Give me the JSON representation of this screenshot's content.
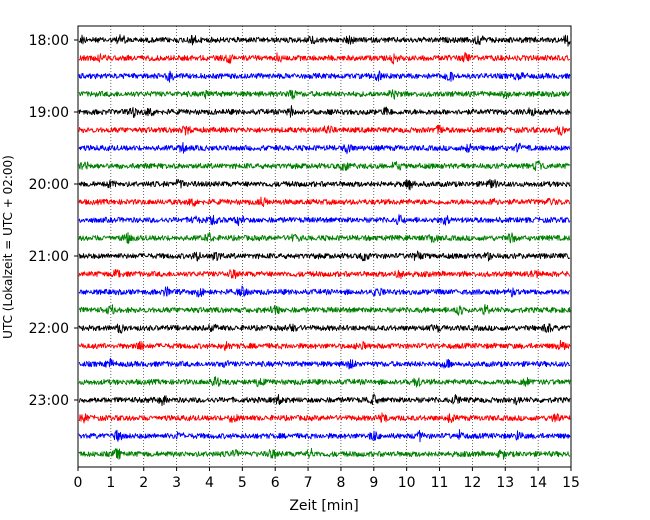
{
  "chart_data": {
    "type": "line",
    "title": "",
    "xlabel": "Zeit  [min]",
    "ylabel": "UTC (Lokalzeit = UTC + 02:00)",
    "xlim": [
      0,
      15
    ],
    "x_ticks": [
      0,
      1,
      2,
      3,
      4,
      5,
      6,
      7,
      8,
      9,
      10,
      11,
      12,
      13,
      14,
      15
    ],
    "x_tick_labels": [
      "0",
      "1",
      "2",
      "3",
      "4",
      "5",
      "6",
      "7",
      "8",
      "9",
      "10",
      "11",
      "12",
      "13",
      "14",
      "15"
    ],
    "y_tick_labels": [
      "18:00",
      "19:00",
      "20:00",
      "21:00",
      "22:00",
      "23:00"
    ],
    "grid": "vertical dotted",
    "trace_colors": [
      "#000000",
      "#ff0000",
      "#0000ff",
      "#008000"
    ],
    "traces": [
      {
        "start": "18:00",
        "color": "#000000",
        "events": [
          0.1,
          1.3,
          3.5,
          7.1,
          8.3,
          12.2,
          14.9
        ]
      },
      {
        "start": "18:15",
        "color": "#ff0000",
        "events": [
          0.7,
          4.6,
          6.1,
          9.6,
          11.8
        ]
      },
      {
        "start": "18:30",
        "color": "#0000ff",
        "events": [
          2.8,
          9.1,
          11.3,
          13.4
        ]
      },
      {
        "start": "18:45",
        "color": "#008000",
        "events": [
          3.9,
          6.5,
          9.6,
          13.0
        ]
      },
      {
        "start": "19:00",
        "color": "#000000",
        "events": [
          1.7,
          2.2,
          6.5,
          9.4,
          13.8
        ]
      },
      {
        "start": "19:15",
        "color": "#ff0000",
        "events": [
          3.3,
          7.6,
          11.0,
          14.7
        ]
      },
      {
        "start": "19:30",
        "color": "#0000ff",
        "events": [
          3.2,
          8.2,
          11.9,
          13.4
        ]
      },
      {
        "start": "19:45",
        "color": "#008000",
        "events": [
          0.2,
          8.1,
          9.7,
          14.0
        ]
      },
      {
        "start": "20:00",
        "color": "#000000",
        "events": [
          1.0,
          3.1,
          10.1,
          12.6
        ]
      },
      {
        "start": "20:15",
        "color": "#ff0000",
        "events": [
          3.5,
          5.6,
          12.6,
          14.4
        ]
      },
      {
        "start": "20:30",
        "color": "#0000ff",
        "events": [
          3.6,
          4.1,
          4.9,
          9.8,
          11.2
        ]
      },
      {
        "start": "20:45",
        "color": "#008000",
        "events": [
          1.5,
          4.0,
          6.6,
          10.8,
          13.2
        ]
      },
      {
        "start": "21:00",
        "color": "#000000",
        "events": [
          3.6,
          4.2,
          8.7,
          10.3,
          12.5
        ]
      },
      {
        "start": "21:15",
        "color": "#ff0000",
        "events": [
          1.2,
          4.7,
          9.8,
          13.9
        ]
      },
      {
        "start": "21:30",
        "color": "#0000ff",
        "events": [
          2.7,
          3.7,
          5.0,
          9.1,
          13.2
        ]
      },
      {
        "start": "21:45",
        "color": "#008000",
        "events": [
          1.0,
          6.0,
          11.6,
          12.4
        ]
      },
      {
        "start": "22:00",
        "color": "#000000",
        "events": [
          1.3,
          4.1,
          6.5,
          10.9,
          14.3
        ]
      },
      {
        "start": "22:15",
        "color": "#ff0000",
        "events": [
          1.9,
          4.5,
          8.6,
          14.7
        ]
      },
      {
        "start": "22:30",
        "color": "#0000ff",
        "events": [
          1.0,
          4.5,
          8.3,
          11.2
        ]
      },
      {
        "start": "22:45",
        "color": "#008000",
        "events": [
          4.2,
          5.5,
          10.3,
          13.6
        ]
      },
      {
        "start": "23:00",
        "color": "#000000",
        "events": [
          2.6,
          6.1,
          9.0,
          11.5,
          13.3
        ]
      },
      {
        "start": "23:15",
        "color": "#ff0000",
        "events": [
          0.2,
          4.7,
          9.3,
          11.3,
          14.5
        ]
      },
      {
        "start": "23:30",
        "color": "#0000ff",
        "events": [
          1.2,
          3.1,
          9.0,
          10.4,
          11.6,
          13.4
        ]
      },
      {
        "start": "23:45",
        "color": "#008000",
        "events": [
          1.2,
          4.8,
          5.9,
          7.1,
          12.9
        ]
      }
    ]
  }
}
